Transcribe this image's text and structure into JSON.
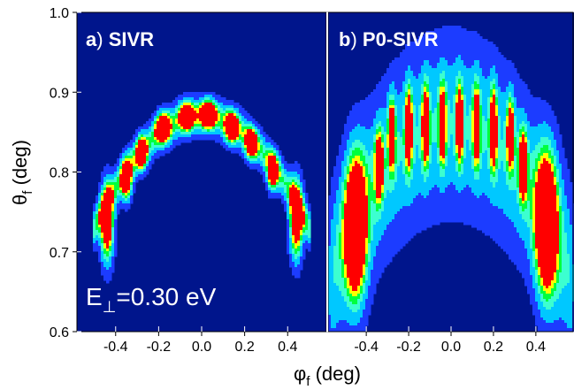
{
  "chart_data": {
    "type": "heatmap",
    "xlabel": "φ",
    "xlabel_sub": "f",
    "xlabel_unit": " (deg)",
    "ylabel": "θ",
    "ylabel_sub": "f",
    "ylabel_unit": " (deg)",
    "ylim": [
      0.6,
      1.0
    ],
    "y_ticks": [
      "0.6",
      "0.7",
      "0.8",
      "0.9",
      "1.0"
    ],
    "y_tick_values": [
      0.6,
      0.7,
      0.8,
      0.9,
      1.0
    ],
    "colors": {
      "background": "#00158c",
      "low": "#1c3cff",
      "mid": "#00c8ff",
      "cyan": "#3cffd0",
      "green": "#00ff3c",
      "yellow": "#ffff00",
      "high": "#ff0000"
    },
    "panels": [
      {
        "letter": "a",
        "name": "SIVR",
        "xlim": [
          -0.58,
          0.58
        ],
        "x_ticks": [
          "-0.4",
          "-0.2",
          "0.0",
          "0.2",
          "0.4"
        ],
        "x_tick_values": [
          -0.4,
          -0.2,
          0.0,
          0.2,
          0.4
        ],
        "annotation_main": "E",
        "annotation_sub": "⊥",
        "annotation_value": "=0.30 eV",
        "blobs": [
          {
            "x": -0.44,
            "y": 0.735,
            "sx": 0.022,
            "sy": 0.034,
            "v": 1.2
          },
          {
            "x": -0.35,
            "y": 0.79,
            "sx": 0.018,
            "sy": 0.018,
            "v": 1.1
          },
          {
            "x": -0.28,
            "y": 0.823,
            "sx": 0.018,
            "sy": 0.014,
            "v": 1.1
          },
          {
            "x": -0.18,
            "y": 0.855,
            "sx": 0.024,
            "sy": 0.013,
            "v": 1.1
          },
          {
            "x": -0.07,
            "y": 0.87,
            "sx": 0.024,
            "sy": 0.012,
            "v": 1.1
          },
          {
            "x": 0.03,
            "y": 0.872,
            "sx": 0.026,
            "sy": 0.012,
            "v": 1.1
          },
          {
            "x": 0.14,
            "y": 0.856,
            "sx": 0.022,
            "sy": 0.013,
            "v": 1.1
          },
          {
            "x": 0.23,
            "y": 0.835,
            "sx": 0.02,
            "sy": 0.013,
            "v": 1.05
          },
          {
            "x": 0.33,
            "y": 0.8,
            "sx": 0.018,
            "sy": 0.016,
            "v": 1.05
          },
          {
            "x": 0.44,
            "y": 0.74,
            "sx": 0.022,
            "sy": 0.034,
            "v": 1.2
          }
        ],
        "arc": {
          "a": 0.87,
          "b": 0.56,
          "x0": 0.0,
          "halfwidth": 0.48,
          "width": 0.016,
          "v": 0.55
        }
      },
      {
        "letter": "b",
        "name": "P0-SIVR",
        "xlim": [
          -0.58,
          0.58
        ],
        "x_ticks": [
          "-0.4",
          "-0.2",
          "0.0",
          "0.2",
          "0.4"
        ],
        "x_tick_values": [
          -0.4,
          -0.2,
          0.0,
          0.2,
          0.4
        ],
        "blobs": [
          {
            "x": -0.45,
            "y": 0.73,
            "sx": 0.036,
            "sy": 0.062,
            "v": 1.3
          },
          {
            "x": -0.34,
            "y": 0.808,
            "sx": 0.014,
            "sy": 0.03,
            "v": 1.05
          },
          {
            "x": -0.28,
            "y": 0.848,
            "sx": 0.012,
            "sy": 0.03,
            "v": 1.0
          },
          {
            "x": -0.2,
            "y": 0.855,
            "sx": 0.012,
            "sy": 0.035,
            "v": 1.0
          },
          {
            "x": -0.12,
            "y": 0.858,
            "sx": 0.012,
            "sy": 0.035,
            "v": 0.95
          },
          {
            "x": -0.04,
            "y": 0.86,
            "sx": 0.012,
            "sy": 0.035,
            "v": 0.95
          },
          {
            "x": 0.04,
            "y": 0.86,
            "sx": 0.012,
            "sy": 0.035,
            "v": 0.95
          },
          {
            "x": 0.12,
            "y": 0.858,
            "sx": 0.012,
            "sy": 0.035,
            "v": 0.95
          },
          {
            "x": 0.2,
            "y": 0.855,
            "sx": 0.012,
            "sy": 0.035,
            "v": 1.0
          },
          {
            "x": 0.28,
            "y": 0.848,
            "sx": 0.012,
            "sy": 0.03,
            "v": 1.0
          },
          {
            "x": 0.34,
            "y": 0.808,
            "sx": 0.014,
            "sy": 0.03,
            "v": 1.05
          },
          {
            "x": 0.45,
            "y": 0.735,
            "sx": 0.036,
            "sy": 0.062,
            "v": 1.3
          }
        ],
        "halo": {
          "a": 0.86,
          "b": 0.6,
          "width": 0.075,
          "v": 0.45
        }
      }
    ]
  }
}
